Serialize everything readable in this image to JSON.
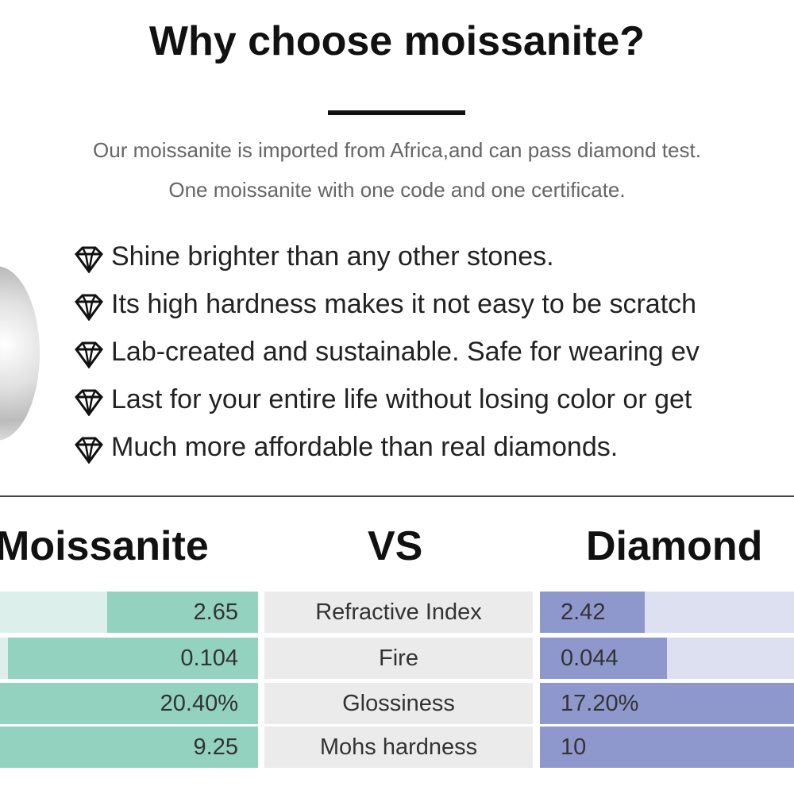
{
  "header": {
    "title": "Why choose moissanite?",
    "subtitle": [
      "Our moissanite is imported from Africa,and can pass diamond test.",
      "One moissanite with one code and one certificate."
    ]
  },
  "features": [
    "Shine brighter than any other stones.",
    "Its high hardness makes it not easy to be scratch",
    "Lab-created and sustainable. Safe for wearing ev",
    "Last for your entire life without losing color or get",
    "Much more affordable than real diamonds."
  ],
  "comparison": {
    "left_heading": "Moissanite",
    "middle_heading": "VS",
    "right_heading": "Diamond",
    "rows": [
      {
        "moissanite": "2.65",
        "property": "Refractive Index",
        "diamond": "2.42"
      },
      {
        "moissanite": "0.104",
        "property": "Fire",
        "diamond": "0.044"
      },
      {
        "moissanite": "20.40%",
        "property": "Glossiness",
        "diamond": "17.20%"
      },
      {
        "moissanite": "9.25",
        "property": "Mohs hardness",
        "diamond": "10"
      }
    ]
  }
}
